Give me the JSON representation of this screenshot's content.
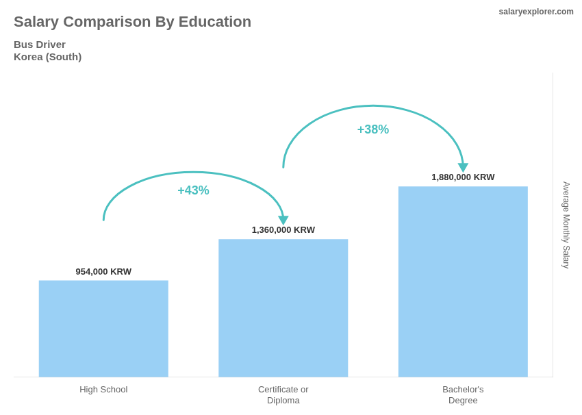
{
  "chart_data": {
    "type": "bar",
    "title": "Salary Comparison By Education",
    "subtitle": [
      "Bus Driver",
      "Korea (South)"
    ],
    "source": "salaryexplorer.com",
    "ylabel": "Average Monthly Salary",
    "categories": [
      "High School",
      "Certificate or\nDiploma",
      "Bachelor's\nDegree"
    ],
    "values": [
      954000,
      1360000,
      1880000
    ],
    "value_labels": [
      "954,000 KRW",
      "1,360,000 KRW",
      "1,880,000 KRW"
    ],
    "data_labels": true,
    "ylim": [
      0,
      3000000
    ],
    "tick_labels": "x",
    "grid": false,
    "annotations": [
      {
        "text": "+43%",
        "from": "High School",
        "to": "Certificate or\nDiploma"
      },
      {
        "text": "+38%",
        "from": "Certificate or\nDiploma",
        "to": "Bachelor's\nDegree"
      }
    ]
  }
}
